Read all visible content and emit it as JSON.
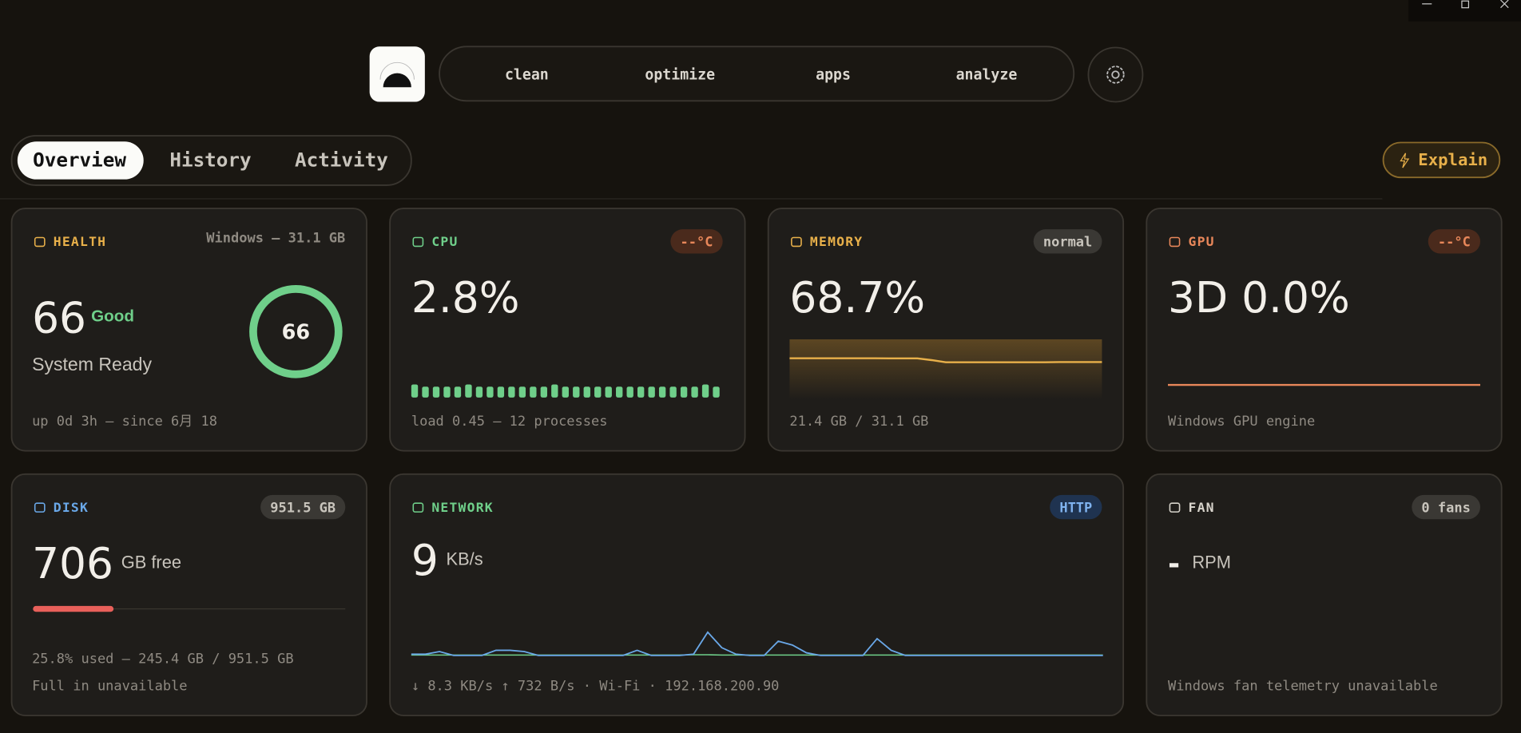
{
  "nav": [
    "clean",
    "optimize",
    "apps",
    "analyze"
  ],
  "tabs": [
    "Overview",
    "History",
    "Activity"
  ],
  "explain": "Explain",
  "health": {
    "title": "HEALTH",
    "meta": "Windows – 31.1 GB",
    "score": 66,
    "status": "Good",
    "status_text": "System Ready",
    "footer": "up 0d 3h – since 6月 18"
  },
  "cpu": {
    "title": "CPU",
    "badge": "--°C",
    "value": "2.8%",
    "history": [
      3,
      2.5,
      2.5,
      2.5,
      2.5,
      3,
      2.5,
      2.5,
      2.5,
      2.5,
      2.5,
      2.5,
      2.5,
      3,
      2.5,
      2.5,
      2.5,
      2.5,
      2.5,
      2.5,
      2.5,
      2.5,
      2.5,
      2.5,
      2.5,
      2.5,
      2.5,
      3,
      2.5
    ],
    "ylim": [
      0,
      4
    ],
    "footer": "load 0.45 – 12 processes"
  },
  "memory": {
    "title": "MEMORY",
    "badge": "normal",
    "value": "68.7%",
    "history": [
      68.5,
      68.6,
      68.6,
      68.6,
      68.5,
      68.5,
      68.5,
      68.4,
      68.4,
      68.4,
      65.5,
      62,
      62,
      62,
      62,
      62,
      62,
      62,
      62,
      62.3,
      62.3,
      62.2,
      62.2
    ],
    "ylim": [
      0,
      100
    ],
    "footer": "21.4 GB / 31.1 GB"
  },
  "gpu": {
    "title": "GPU",
    "badge": "--°C",
    "value": "3D 0.0%",
    "history": [
      0,
      0,
      0,
      0,
      0,
      0,
      0,
      0,
      0,
      0,
      0,
      0,
      0,
      0,
      0,
      0,
      0,
      0,
      0,
      0
    ],
    "ylim": [
      0,
      100
    ],
    "footer": "Windows GPU engine"
  },
  "disk": {
    "title": "DISK",
    "badge": "951.5 GB",
    "value": 706,
    "unit": "GB free",
    "used_percent": 25.8,
    "bar_range": [
      0,
      100
    ],
    "footer": [
      "25.8% used – 245.4 GB / 951.5 GB",
      "Full in unavailable"
    ]
  },
  "network": {
    "title": "NETWORK",
    "badge": "HTTP",
    "value": 9,
    "unit": "KB/s",
    "down": [
      1,
      1,
      3,
      0,
      0,
      0,
      4,
      4,
      3,
      0,
      0,
      0,
      0,
      0,
      0,
      0,
      4,
      0,
      0,
      0,
      1,
      18,
      6,
      1,
      0,
      0,
      11,
      8,
      2,
      0,
      0,
      0,
      0,
      13,
      4,
      0,
      0,
      0,
      0,
      0,
      0,
      0,
      0,
      0,
      0,
      0,
      0,
      0,
      0,
      0
    ],
    "up": [
      0.3,
      0.3,
      0.3,
      0.3,
      0.3,
      0.3,
      0.3,
      0.3,
      0.3,
      0.3,
      0.3,
      0.3,
      0.3,
      0.3,
      0.3,
      0.3,
      0.3,
      0.3,
      0.3,
      0.3,
      0.5,
      0.5,
      0.3,
      0.3,
      0.3,
      0.3,
      0.3,
      0.3,
      0.3,
      0.3,
      0.3,
      0.3,
      0.3,
      0.3,
      0.3,
      0.3,
      0.3,
      0.3,
      0.3,
      0.3,
      0.3,
      0.3,
      0.3,
      0.3,
      0.3,
      0.3,
      0.3,
      0.3,
      0.3,
      0.3
    ],
    "ylim": [
      0,
      30
    ],
    "footer": "↓ 8.3 KB/s  ↑ 732 B/s · Wi-Fi · 192.168.200.90"
  },
  "fan": {
    "title": "FAN",
    "badge": "0 fans",
    "value": "-",
    "unit": "RPM",
    "footer": "Windows fan telemetry unavailable"
  }
}
